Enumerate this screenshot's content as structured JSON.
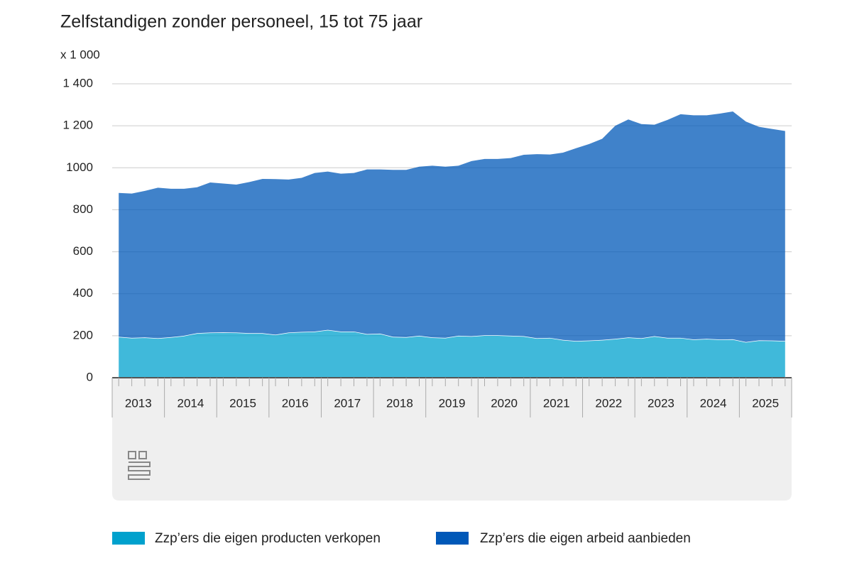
{
  "chart_data": {
    "type": "stacked_area",
    "title": "Zelfstandigen zonder personeel, 15 tot 75 jaar",
    "y_unit_label": "x 1 000",
    "years": [
      "2013",
      "2014",
      "2015",
      "2016",
      "2017",
      "2018",
      "2019",
      "2020",
      "2021",
      "2022",
      "2023",
      "2024",
      "2025"
    ],
    "series": [
      {
        "name": "Zzp’ers die eigen producten verkopen",
        "color": "#00a1cd",
        "values": [
          195,
          190,
          192,
          188,
          193,
          200,
          212,
          215,
          216,
          215,
          212,
          212,
          205,
          215,
          218,
          220,
          228,
          220,
          220,
          208,
          210,
          195,
          193,
          200,
          192,
          190,
          200,
          198,
          202,
          202,
          200,
          198,
          188,
          190,
          180,
          175,
          177,
          180,
          185,
          192,
          188,
          198,
          190,
          190,
          182,
          185,
          182,
          183,
          170,
          178,
          177,
          175
        ]
      },
      {
        "name": "Zzp’ers die eigen arbeid aanbieden",
        "color": "#0058b8",
        "values": [
          685,
          687,
          698,
          717,
          707,
          700,
          695,
          715,
          709,
          705,
          720,
          735,
          741,
          729,
          734,
          755,
          754,
          752,
          755,
          784,
          782,
          795,
          797,
          805,
          818,
          815,
          810,
          834,
          840,
          840,
          846,
          864,
          877,
          873,
          892,
          918,
          936,
          958,
          1015,
          1038,
          1020,
          1007,
          1038,
          1065,
          1068,
          1065,
          1076,
          1085,
          1050,
          1017,
          1008,
          1000
        ]
      }
    ],
    "ylim": [
      0,
      1400
    ],
    "yticks": [
      0,
      200,
      400,
      600,
      800,
      1000,
      {
        "value": 1200,
        "label": "1 200"
      },
      {
        "value": 1400,
        "label": "1 400"
      }
    ],
    "grid": true
  }
}
